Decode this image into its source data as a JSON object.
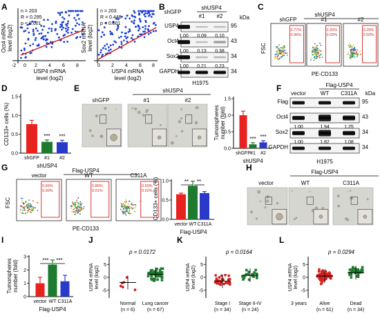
{
  "panel_labels": [
    "A",
    "B",
    "C",
    "D",
    "E",
    "F",
    "G",
    "H",
    "I",
    "J",
    "K",
    "L"
  ],
  "scatterA1": {
    "stats": [
      "n = 203",
      "R = 0.295",
      "p < 0.001"
    ],
    "ylabel1": "Oct4 mRNA",
    "ylabel2": "level (log2)",
    "xlabel1": "USP4 mRNA",
    "xlabel2": "level (log2)",
    "xticks": [
      "-2",
      "0",
      "2",
      "4",
      "6",
      "8"
    ],
    "yticks": [
      "0",
      "2",
      "4",
      "6",
      "8"
    ]
  },
  "scatterA2": {
    "stats": [
      "n = 203",
      "R = 0.448",
      "p < 0.001"
    ],
    "ylabel1": "Sox2 mRNA",
    "ylabel2": "level (log2)",
    "xlabel1": "USP4 mRNA",
    "xlabel2": "level (log2)",
    "xticks": [
      "0",
      "2",
      "4",
      "6",
      "8"
    ],
    "yticks": [
      "0",
      "2",
      "4",
      "6",
      "8"
    ]
  },
  "blotB": {
    "cols": [
      "shGFP",
      "#1",
      "#2"
    ],
    "group": "shUSP4",
    "kda": "kDa",
    "rows": [
      {
        "name": "USP4",
        "mw": "95",
        "vals": [
          "1.00",
          "0.09",
          "0.10"
        ]
      },
      {
        "name": "Oct4",
        "mw": "43",
        "vals": [
          "1.00",
          "0.13",
          "0.38"
        ]
      },
      {
        "name": "Sox2",
        "mw": "34",
        "vals": [
          "1.00",
          "0.21",
          "0.23"
        ]
      },
      {
        "name": "GAPDH",
        "mw": "34",
        "vals": []
      }
    ],
    "cell": "H1975"
  },
  "flowC": {
    "group": "shUSP4",
    "panels": [
      {
        "label": "shGFP",
        "p1": "0.77%",
        "p2": "0.06%"
      },
      {
        "label": "#1",
        "p1": "0.20%",
        "p2": "0.03%"
      },
      {
        "label": "#2",
        "p1": "0.29%",
        "p2": "0.03%"
      }
    ],
    "ylabel": "FSC",
    "xlabel": "PE-CD133"
  },
  "barD": {
    "ylabel": "CD133+ cells (%)",
    "yticks": [
      "0.0",
      "0.5",
      "1.0",
      "1.5"
    ],
    "categories": [
      "shGFP",
      "#1",
      "#2"
    ],
    "values": [
      0.77,
      0.3,
      0.29
    ],
    "errors": [
      0.1,
      0.05,
      0.05
    ],
    "group": "shUSP4",
    "sig": [
      "",
      "***",
      "***"
    ],
    "colors": [
      "#e8221f",
      "#1d7a2e",
      "#2a3ac8"
    ]
  },
  "microE": {
    "labels": [
      "shGFP",
      "#1",
      "#2"
    ],
    "group": "shUSP4"
  },
  "barE": {
    "ylabel1": "Tumorspheres",
    "ylabel2": "number (fold)",
    "yticks": [
      "0.0",
      "0.5",
      "1.0",
      "1.5"
    ],
    "categories": [
      "shGFP",
      "#1",
      "#2"
    ],
    "values": [
      1.0,
      0.12,
      0.18
    ],
    "errors": [
      0.12,
      0.05,
      0.05
    ],
    "group": "shUSP4",
    "sig": [
      "",
      "***",
      "***"
    ]
  },
  "blotF": {
    "cols": [
      "vector",
      "WT",
      "C311A"
    ],
    "group": "Flag-USP4",
    "kda": "kDa",
    "rows": [
      {
        "name": "Flag",
        "mw": "95",
        "vals": []
      },
      {
        "name": "Oct4",
        "mw": "43",
        "vals": [
          "1.00",
          "1.94",
          "1.25"
        ]
      },
      {
        "name": "Sox2",
        "mw": "34",
        "vals": [
          "1.00",
          "1.82",
          "1.08"
        ]
      },
      {
        "name": "GAPDH",
        "mw": "34",
        "vals": []
      }
    ],
    "cell": "H1975"
  },
  "flowG": {
    "group": "Flag-USP4",
    "panels": [
      {
        "label": "vector",
        "p1": "0.66%",
        "p2": "0.00%"
      },
      {
        "label": "WT",
        "p1": "0.86%",
        "p2": "0.01%"
      },
      {
        "label": "C311A",
        "p1": "0.69%",
        "p2": "0.02%"
      }
    ],
    "ylabel": "FSC",
    "xlabel": "PE-CD133"
  },
  "barG": {
    "ylabel": "CD133+ cells (%)",
    "yticks": [
      "0.0",
      "0.5",
      "1.0"
    ],
    "categories": [
      "vector",
      "WT",
      "C311A"
    ],
    "values": [
      0.65,
      0.87,
      0.68
    ],
    "errors": [
      0.03,
      0.12,
      0.04
    ],
    "group": "Flag-USP4",
    "sig": [
      "**",
      "**"
    ]
  },
  "microH": {
    "labels": [
      "vector",
      "WT",
      "C311A"
    ],
    "group": "Flag-USP4"
  },
  "barI": {
    "ylabel1": "Tumorspheres",
    "ylabel2": "number (fold)",
    "yticks": [
      "0",
      "1",
      "2",
      "3"
    ],
    "categories": [
      "vector",
      "WT",
      "C311A"
    ],
    "values": [
      1.0,
      2.4,
      1.15
    ],
    "errors": [
      0.45,
      0.35,
      0.45
    ],
    "group": "Flag-USP4",
    "sig": [
      "***",
      "***"
    ]
  },
  "dotJ": {
    "p": "p = 0.0172",
    "ylabel1": "USP4 mRNA",
    "ylabel2": "level (log2)",
    "yticks": [
      "-5",
      "0",
      "5"
    ],
    "groups": [
      {
        "name": "Normal",
        "n": "(n = 6)"
      },
      {
        "name": "Lung cancer",
        "n": "(n = 67)"
      }
    ]
  },
  "dotK": {
    "p": "p = 0.0164",
    "ylabel1": "USP4 mRNA",
    "ylabel2": "level (log2)",
    "yticks": [
      "-5",
      "0",
      "5"
    ],
    "groups": [
      {
        "name": "Stage I",
        "n": "(n = 34)"
      },
      {
        "name": "Stage II-IV",
        "n": "(n = 24)"
      }
    ]
  },
  "dotL": {
    "p": "p = 0.0294",
    "ylabel1": "USP4 mRNA",
    "ylabel2": "level (log2)",
    "yticks": [
      "-5",
      "0",
      "5"
    ],
    "prefix": "3 years",
    "groups": [
      {
        "name": "Alive",
        "n": "(n = 61)"
      },
      {
        "name": "Dead",
        "n": "(n = 34)"
      }
    ]
  },
  "chart_data": [
    {
      "type": "bar",
      "categories": [
        "shGFP",
        "#1",
        "#2"
      ],
      "values": [
        0.77,
        0.3,
        0.29
      ],
      "ylabel": "CD133+ cells (%)",
      "ylim": [
        0,
        1.5
      ]
    },
    {
      "type": "bar",
      "categories": [
        "shGFP",
        "#1",
        "#2"
      ],
      "values": [
        1.0,
        0.12,
        0.18
      ],
      "ylabel": "Tumorspheres number (fold)",
      "ylim": [
        0,
        1.5
      ]
    },
    {
      "type": "bar",
      "categories": [
        "vector",
        "WT",
        "C311A"
      ],
      "values": [
        0.65,
        0.87,
        0.68
      ],
      "ylabel": "CD133+ cells (%)",
      "ylim": [
        0,
        1.0
      ]
    },
    {
      "type": "bar",
      "categories": [
        "vector",
        "WT",
        "C311A"
      ],
      "values": [
        1.0,
        2.4,
        1.15
      ],
      "ylabel": "Tumorspheres number (fold)",
      "ylim": [
        0,
        3
      ]
    }
  ]
}
